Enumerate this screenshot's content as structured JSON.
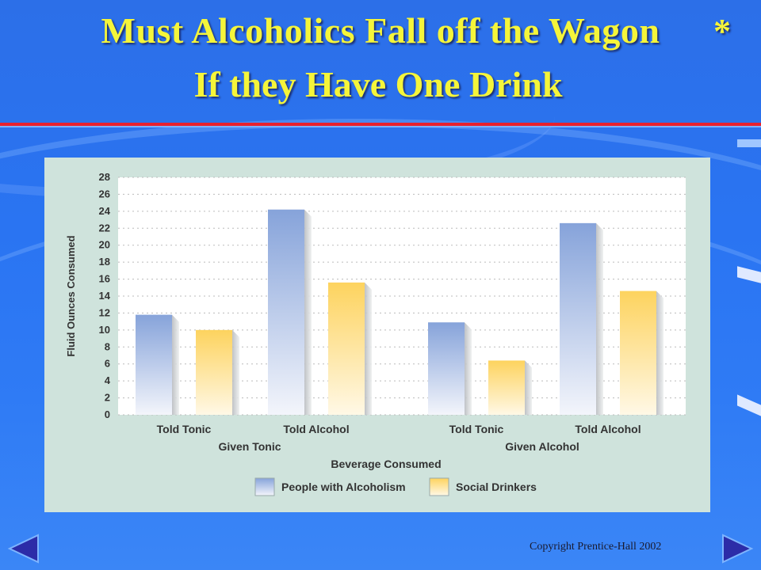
{
  "slide": {
    "title_line1": "Must Alcoholics Fall off the Wagon",
    "title_line2": "If they Have One Drink",
    "title_mark": "*",
    "copyright": "Copyright Prentice-Hall 2002",
    "nav": {
      "prev": "previous-slide",
      "next": "next-slide"
    }
  },
  "colors": {
    "title": "#f5f53a",
    "rule": "#e8202e",
    "panel": "#cfe3dc",
    "series_alcoholism": "#8aa6dc",
    "series_social": "#fdd66a"
  },
  "chart_data": {
    "type": "bar",
    "title": "",
    "xlabel": "Beverage Consumed",
    "ylabel": "Fluid Ounces Consumed",
    "ylim": [
      0,
      28
    ],
    "yticks": [
      0,
      2,
      4,
      6,
      8,
      10,
      12,
      14,
      16,
      18,
      20,
      22,
      24,
      26,
      28
    ],
    "categories": [
      "Told Tonic",
      "Told Alcohol",
      "Told Tonic",
      "Told Alcohol"
    ],
    "groups": [
      {
        "label": "Given Tonic",
        "categories": [
          "Told Tonic",
          "Told Alcohol"
        ]
      },
      {
        "label": "Given Alcohol",
        "categories": [
          "Told Tonic",
          "Told Alcohol"
        ]
      }
    ],
    "series": [
      {
        "name": "People with Alcoholism",
        "values": [
          11.8,
          24.2,
          10.9,
          22.6
        ]
      },
      {
        "name": "Social Drinkers",
        "values": [
          10.0,
          15.6,
          6.4,
          14.6
        ]
      }
    ],
    "grid": true,
    "legend": "bottom"
  }
}
